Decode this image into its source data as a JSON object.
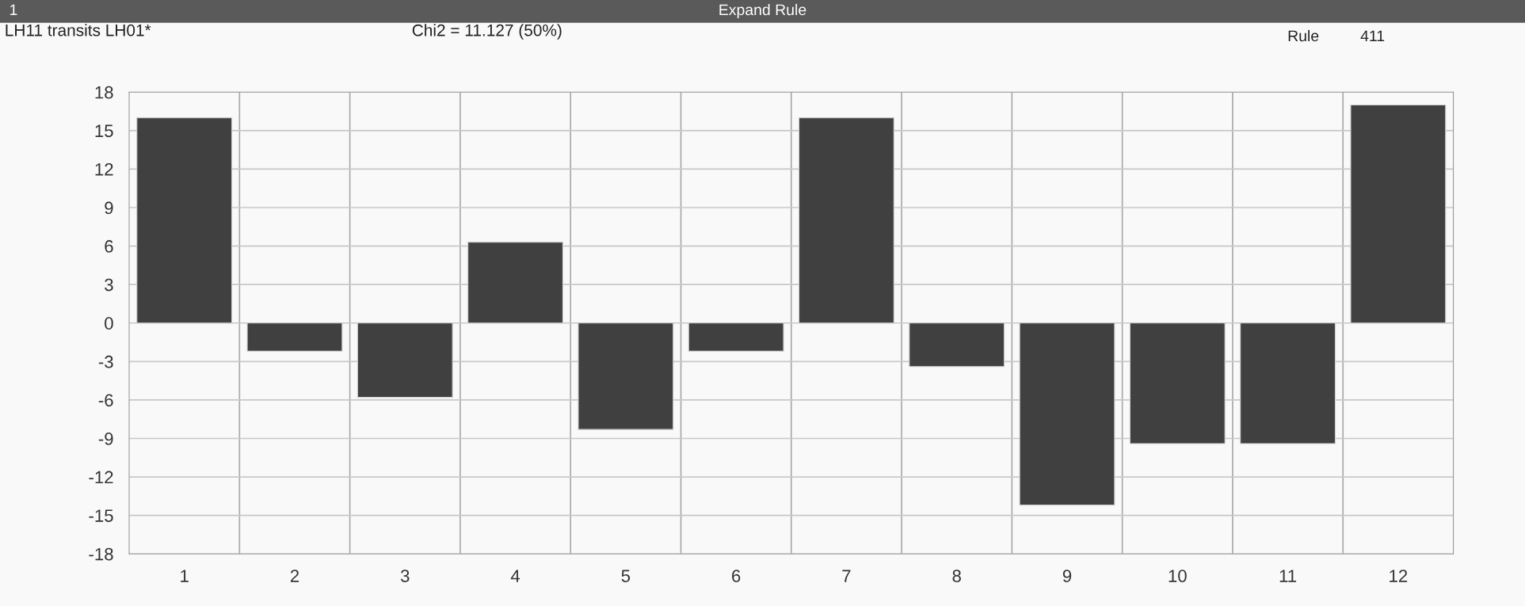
{
  "chart_data": {
    "type": "bar",
    "title": "LH11 transits LH01*",
    "subtitle": "Chi2 = 11.127 (50%)",
    "annotations": [
      "1",
      "Expand Rule",
      "Rule",
      "411"
    ],
    "categories": [
      "1",
      "2",
      "3",
      "4",
      "5",
      "6",
      "7",
      "8",
      "9",
      "10",
      "11",
      "12"
    ],
    "values": [
      16,
      -2.2,
      -5.8,
      6.3,
      -8.3,
      -2.2,
      16,
      -3.4,
      -14.2,
      -9.4,
      -9.4,
      17
    ],
    "color": "#404040",
    "ylim": [
      -18,
      18
    ],
    "yticks": [
      -18,
      -15,
      -12,
      -9,
      -6,
      -3,
      0,
      3,
      6,
      9,
      12,
      15,
      18
    ],
    "grid": true
  }
}
